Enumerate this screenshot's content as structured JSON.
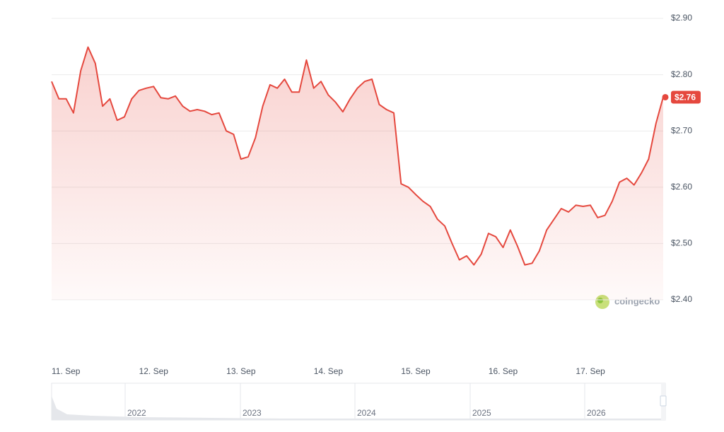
{
  "chart_data": {
    "type": "line",
    "color": "#e5483e",
    "categories": [
      "11. Sep",
      null,
      null,
      null,
      null,
      null,
      null,
      null,
      null,
      null,
      null,
      null,
      "12. Sep",
      null,
      null,
      null,
      null,
      null,
      null,
      null,
      null,
      null,
      null,
      null,
      "13. Sep",
      null,
      null,
      null,
      null,
      null,
      null,
      null,
      null,
      null,
      null,
      null,
      "14. Sep",
      null,
      null,
      null,
      null,
      null,
      null,
      null,
      null,
      null,
      null,
      null,
      "15. Sep",
      null,
      null,
      null,
      null,
      null,
      null,
      null,
      null,
      null,
      null,
      null,
      "16. Sep",
      null,
      null,
      null,
      null,
      null,
      null,
      null,
      null,
      null,
      null,
      null,
      "17. Sep",
      null,
      null,
      null,
      null,
      null,
      null,
      null,
      null,
      null,
      null,
      null,
      null
    ],
    "values": [
      2.788,
      2.757,
      2.757,
      2.732,
      2.807,
      2.849,
      2.82,
      2.744,
      2.757,
      2.719,
      2.725,
      2.757,
      2.772,
      2.776,
      2.779,
      2.759,
      2.757,
      2.762,
      2.744,
      2.735,
      2.738,
      2.735,
      2.729,
      2.732,
      2.7,
      2.694,
      2.65,
      2.654,
      2.688,
      2.744,
      2.782,
      2.776,
      2.792,
      2.769,
      2.769,
      2.826,
      2.776,
      2.788,
      2.764,
      2.751,
      2.734,
      2.757,
      2.776,
      2.788,
      2.792,
      2.747,
      2.738,
      2.732,
      2.606,
      2.6,
      2.587,
      2.575,
      2.566,
      2.543,
      2.531,
      2.5,
      2.471,
      2.478,
      2.462,
      2.481,
      2.518,
      2.512,
      2.493,
      2.524,
      2.495,
      2.462,
      2.465,
      2.487,
      2.524,
      2.543,
      2.562,
      2.556,
      2.568,
      2.566,
      2.568,
      2.546,
      2.55,
      2.575,
      2.609,
      2.616,
      2.604,
      2.625,
      2.65,
      2.713,
      2.76
    ],
    "ylim": [
      2.4,
      2.9
    ],
    "yticks": [
      {
        "value": 2.4,
        "label": "$2.40"
      },
      {
        "value": 2.5,
        "label": "$2.50"
      },
      {
        "value": 2.6,
        "label": "$2.60"
      },
      {
        "value": 2.7,
        "label": "$2.70"
      },
      {
        "value": 2.8,
        "label": "$2.80"
      },
      {
        "value": 2.9,
        "label": "$2.90"
      }
    ],
    "grid": true,
    "last_price": {
      "value": 2.76,
      "label": "$2.76"
    },
    "watermark": "coingecko",
    "navigator_labels": [
      "2022",
      "2023",
      "2024",
      "2025",
      "2026"
    ]
  }
}
